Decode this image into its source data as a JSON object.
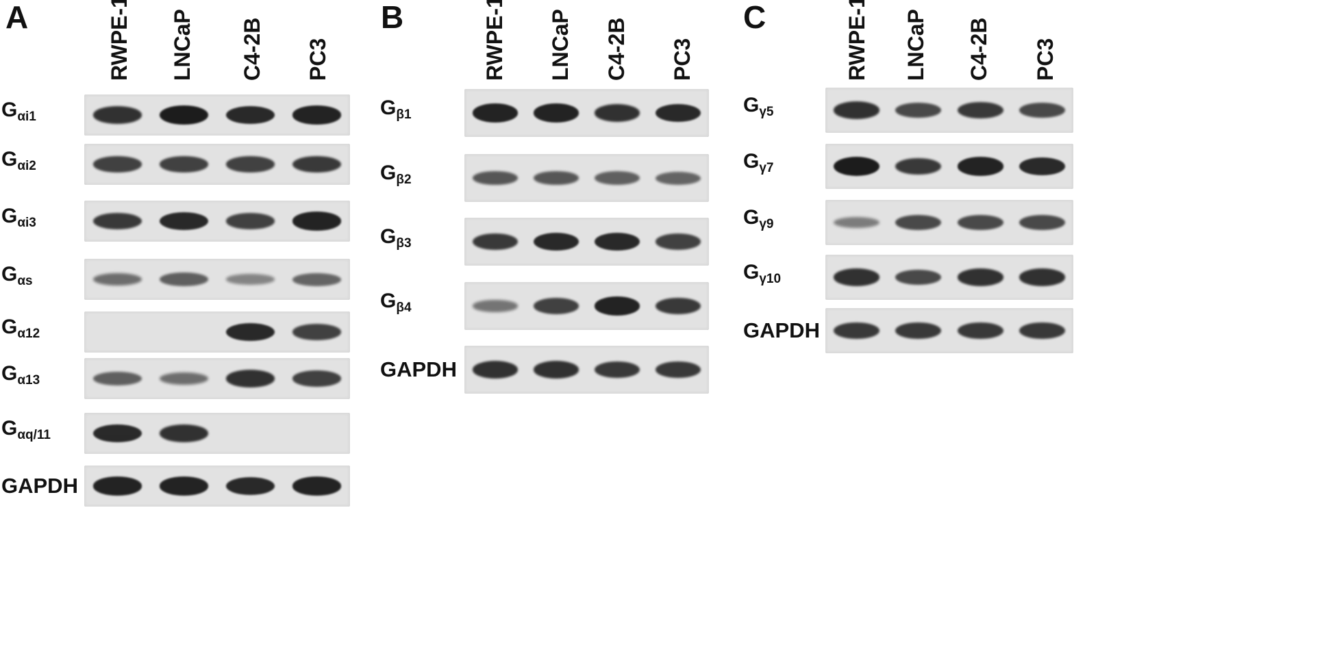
{
  "band_color": "#1c1c1c",
  "strip_color": "#e2e2e2",
  "panels": [
    {
      "letter": "A",
      "lanes": [
        "RWPE-1",
        "LNCaP",
        "C4-2B",
        "PC3"
      ],
      "rows": [
        {
          "label": "G",
          "sub": "αi1",
          "bands": [
            0.85,
            1.0,
            0.9,
            0.95
          ]
        },
        {
          "label": "G",
          "sub": "αi2",
          "bands": [
            0.75,
            0.75,
            0.75,
            0.8
          ]
        },
        {
          "label": "G",
          "sub": "αi3",
          "bands": [
            0.8,
            0.9,
            0.75,
            0.95
          ]
        },
        {
          "label": "G",
          "sub": "αs",
          "bands": [
            0.45,
            0.55,
            0.3,
            0.5
          ]
        },
        {
          "label": "G",
          "sub": "α12",
          "bands": [
            0,
            0,
            0.9,
            0.75
          ]
        },
        {
          "label": "G",
          "sub": "α13",
          "bands": [
            0.55,
            0.45,
            0.85,
            0.75
          ]
        },
        {
          "label": "G",
          "sub": "αq/11",
          "bands": [
            0.9,
            0.85,
            0,
            0
          ]
        },
        {
          "label": "GAPDH",
          "sub": "",
          "bands": [
            0.95,
            0.95,
            0.9,
            0.95
          ]
        }
      ]
    },
    {
      "letter": "B",
      "lanes": [
        "RWPE-1",
        "LNCaP",
        "C4-2B",
        "PC3"
      ],
      "rows": [
        {
          "label": "G",
          "sub": "β1",
          "bands": [
            0.95,
            0.95,
            0.85,
            0.9
          ]
        },
        {
          "label": "G",
          "sub": "β2",
          "bands": [
            0.6,
            0.6,
            0.55,
            0.5
          ]
        },
        {
          "label": "G",
          "sub": "β3",
          "bands": [
            0.8,
            0.9,
            0.9,
            0.75
          ]
        },
        {
          "label": "G",
          "sub": "β4",
          "bands": [
            0.4,
            0.75,
            0.95,
            0.8
          ]
        },
        {
          "label": "GAPDH",
          "sub": "",
          "bands": [
            0.85,
            0.85,
            0.8,
            0.8
          ]
        }
      ]
    },
    {
      "letter": "C",
      "lanes": [
        "RWPE-1",
        "LNCaP",
        "C4-2B",
        "PC3"
      ],
      "rows": [
        {
          "label": "G",
          "sub": "γ5",
          "bands": [
            0.85,
            0.7,
            0.8,
            0.7
          ]
        },
        {
          "label": "G",
          "sub": "γ7",
          "bands": [
            1.0,
            0.8,
            0.95,
            0.9
          ]
        },
        {
          "label": "G",
          "sub": "γ9",
          "bands": [
            0.35,
            0.7,
            0.7,
            0.7
          ]
        },
        {
          "label": "G",
          "sub": "γ10",
          "bands": [
            0.85,
            0.7,
            0.85,
            0.85
          ]
        },
        {
          "label": "GAPDH",
          "sub": "",
          "bands": [
            0.8,
            0.8,
            0.8,
            0.8
          ]
        }
      ]
    }
  ]
}
